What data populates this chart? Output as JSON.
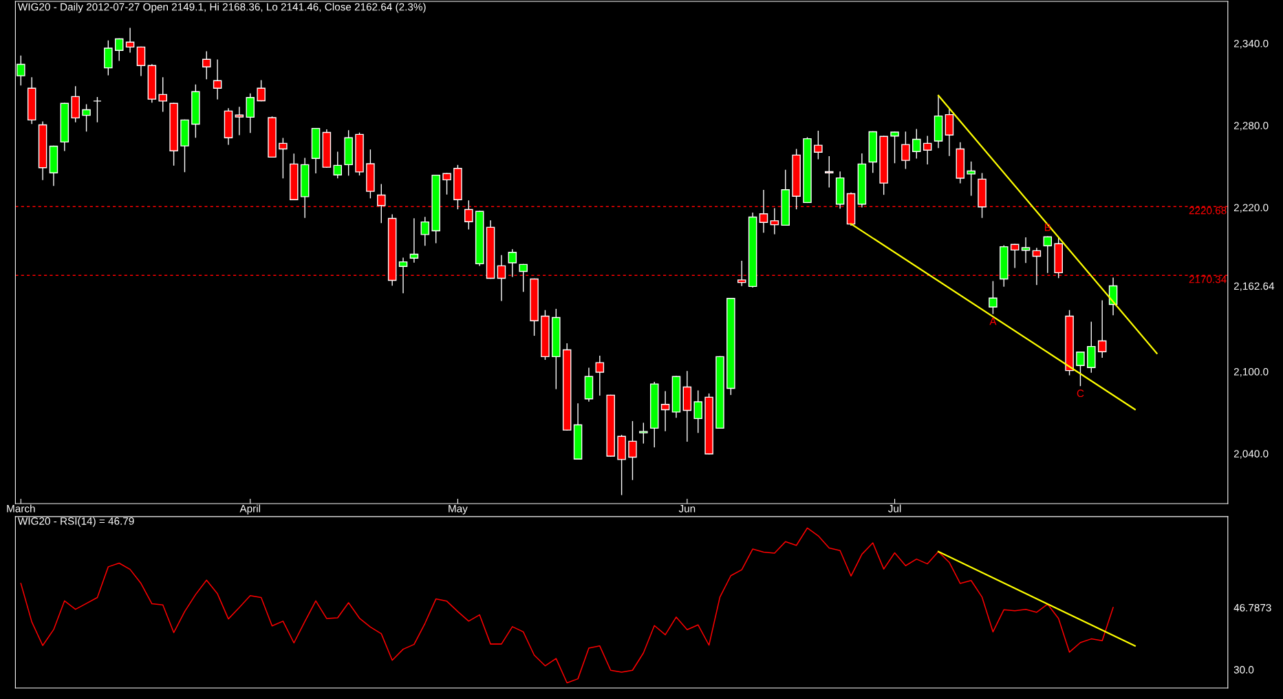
{
  "chart_data": [
    {
      "type": "candlestick",
      "title": "WIG20 - Daily 2012-07-27 Open 2149.1, Hi 2168.36, Lo 2141.46, Close 2162.64 (2.3%)",
      "categories": [
        "March",
        null,
        null,
        null,
        null,
        null,
        null,
        null,
        null,
        null,
        null,
        null,
        null,
        null,
        null,
        null,
        null,
        null,
        null,
        null,
        null,
        "April",
        null,
        null,
        null,
        null,
        null,
        null,
        null,
        null,
        null,
        null,
        null,
        null,
        null,
        null,
        null,
        null,
        null,
        null,
        "May",
        null,
        null,
        null,
        null,
        null,
        null,
        null,
        null,
        null,
        null,
        null,
        null,
        null,
        null,
        null,
        null,
        null,
        null,
        null,
        null,
        "Jun",
        null,
        null,
        null,
        null,
        null,
        null,
        null,
        null,
        null,
        null,
        null,
        null,
        null,
        null,
        null,
        null,
        null,
        null,
        "Jul",
        null,
        null,
        null,
        null,
        null,
        null,
        null,
        null,
        null,
        null,
        null,
        null,
        null,
        null,
        null,
        null,
        null,
        null,
        null,
        null,
        null,
        null,
        null,
        null,
        null,
        null,
        null,
        null,
        null,
        null
      ],
      "ohlc": [
        [
          2316.3,
          2330.8,
          2309.6,
          2324.7
        ],
        [
          2307.2,
          2314.9,
          2281.4,
          2284.0
        ],
        [
          2280.4,
          2282.6,
          2240.4,
          2249.1
        ],
        [
          2245.3,
          2264.8,
          2236.1,
          2264.8
        ],
        [
          2267.9,
          2296.1,
          2261.6,
          2296.1
        ],
        [
          2301.1,
          2308.4,
          2282.6,
          2285.5
        ],
        [
          2287.4,
          2295.1,
          2275.8,
          2291.5
        ],
        [
          2297.8,
          2300.4,
          2282.6,
          2297.8
        ],
        [
          2322.1,
          2341.8,
          2317.0,
          2336.5
        ],
        [
          2334.9,
          2343.3,
          2327.6,
          2343.3
        ],
        [
          2340.9,
          2351.0,
          2333.6,
          2337.3
        ],
        [
          2337.3,
          2337.3,
          2316.5,
          2323.8
        ],
        [
          2323.8,
          2324.5,
          2297.0,
          2299.2
        ],
        [
          2302.6,
          2314.9,
          2290.3,
          2297.8
        ],
        [
          2296.1,
          2296.1,
          2251.0,
          2261.4
        ],
        [
          2265.0,
          2284.0,
          2246.2,
          2284.0
        ],
        [
          2280.9,
          2309.6,
          2271.3,
          2304.7
        ],
        [
          2328.3,
          2333.9,
          2314.1,
          2322.8
        ],
        [
          2312.7,
          2327.9,
          2299.4,
          2307.2
        ],
        [
          2290.5,
          2292.2,
          2266.2,
          2271.0
        ],
        [
          2287.6,
          2293.2,
          2273.2,
          2286.2
        ],
        [
          2286.0,
          2303.1,
          2274.9,
          2300.4
        ],
        [
          2307.2,
          2312.7,
          2298.0,
          2298.0
        ],
        [
          2285.7,
          2286.2,
          2256.8,
          2256.8
        ],
        [
          2266.9,
          2270.5,
          2241.6,
          2262.8
        ],
        [
          2251.8,
          2259.0,
          2225.7,
          2225.7
        ],
        [
          2227.9,
          2255.9,
          2212.7,
          2251.3
        ],
        [
          2255.9,
          2277.8,
          2245.3,
          2277.8
        ],
        [
          2274.9,
          2276.8,
          2249.4,
          2249.4
        ],
        [
          2243.8,
          2260.4,
          2241.6,
          2250.8
        ],
        [
          2251.3,
          2276.1,
          2243.6,
          2271.0
        ],
        [
          2273.4,
          2274.4,
          2243.8,
          2246.0
        ],
        [
          2252.0,
          2262.1,
          2227.0,
          2231.8
        ],
        [
          2229.1,
          2236.8,
          2208.9,
          2221.4
        ],
        [
          2212.0,
          2214.7,
          2163.1,
          2166.7
        ],
        [
          2176.9,
          2182.9,
          2157.6,
          2180.2
        ],
        [
          2182.9,
          2211.8,
          2180.0,
          2185.8
        ],
        [
          2200.2,
          2212.7,
          2192.3,
          2209.4
        ],
        [
          2202.9,
          2243.6,
          2194.2,
          2243.6
        ],
        [
          2244.8,
          2244.8,
          2229.8,
          2240.2
        ],
        [
          2248.6,
          2250.8,
          2219.0,
          2225.7
        ],
        [
          2218.5,
          2224.8,
          2204.3,
          2209.6
        ],
        [
          2178.8,
          2217.1,
          2177.6,
          2217.1
        ],
        [
          2205.5,
          2210.3,
          2168.2,
          2168.2
        ],
        [
          2177.3,
          2184.8,
          2152.0,
          2168.2
        ],
        [
          2179.5,
          2189.1,
          2169.6,
          2187.2
        ],
        [
          2173.2,
          2178.3,
          2158.6,
          2178.3
        ],
        [
          2167.7,
          2167.7,
          2126.5,
          2137.1
        ],
        [
          2140.5,
          2144.6,
          2108.9,
          2110.9
        ],
        [
          2110.9,
          2145.5,
          2087.5,
          2139.5
        ],
        [
          2115.9,
          2120.3,
          2057.2,
          2057.2
        ],
        [
          2036.0,
          2076.4,
          2036.0,
          2061.0
        ],
        [
          2080.0,
          2102.4,
          2078.4,
          2096.4
        ],
        [
          2106.5,
          2111.3,
          2082.7,
          2099.5
        ],
        [
          2082.7,
          2082.7,
          2038.1,
          2038.1
        ],
        [
          2052.6,
          2053.3,
          2010.0,
          2035.7
        ],
        [
          2049.0,
          2063.4,
          2021.0,
          2037.4
        ],
        [
          2055.2,
          2062.2,
          2047.7,
          2056.2
        ],
        [
          2058.6,
          2092.1,
          2044.9,
          2090.9
        ],
        [
          2076.0,
          2085.3,
          2056.7,
          2072.1
        ],
        [
          2070.4,
          2096.4,
          2066.5,
          2096.4
        ],
        [
          2088.7,
          2100.0,
          2049.0,
          2071.6
        ],
        [
          2065.6,
          2085.8,
          2055.5,
          2077.9
        ],
        [
          2081.2,
          2083.6,
          2039.8,
          2039.8
        ],
        [
          2058.6,
          2110.9,
          2058.6,
          2110.9
        ],
        [
          2087.7,
          2153.5,
          2083.2,
          2153.5
        ],
        [
          2167.0,
          2180.7,
          2162.9,
          2165.1
        ],
        [
          2162.2,
          2215.9,
          2161.7,
          2213.0
        ],
        [
          2215.4,
          2232.5,
          2201.9,
          2209.1
        ],
        [
          2210.3,
          2219.2,
          2200.7,
          2207.4
        ],
        [
          2207.0,
          2247.2,
          2207.0,
          2233.0
        ],
        [
          2258.3,
          2262.4,
          2219.0,
          2228.2
        ],
        [
          2223.6,
          2271.0,
          2223.6,
          2270.3
        ],
        [
          2265.5,
          2275.8,
          2255.6,
          2260.4
        ],
        [
          2246.2,
          2257.1,
          2234.9,
          2245.3
        ],
        [
          2222.4,
          2246.0,
          2219.5,
          2241.6
        ],
        [
          2230.1,
          2230.6,
          2207.0,
          2207.9
        ],
        [
          2222.4,
          2259.2,
          2220.4,
          2251.8
        ],
        [
          2253.2,
          2275.4,
          2245.7,
          2275.4
        ],
        [
          2272.0,
          2272.0,
          2229.6,
          2237.8
        ],
        [
          2272.2,
          2275.1,
          2252.7,
          2275.1
        ],
        [
          2266.0,
          2275.1,
          2248.6,
          2254.4
        ],
        [
          2260.9,
          2277.0,
          2256.1,
          2269.8
        ],
        [
          2266.9,
          2272.0,
          2251.8,
          2261.9
        ],
        [
          2268.6,
          2301.9,
          2263.8,
          2286.9
        ],
        [
          2287.9,
          2292.2,
          2258.0,
          2273.0
        ],
        [
          2262.8,
          2267.4,
          2238.0,
          2241.4
        ],
        [
          2244.5,
          2253.2,
          2228.9,
          2246.7
        ],
        [
          2240.7,
          2244.8,
          2212.7,
          2220.4
        ],
        [
          2147.2,
          2165.8,
          2142.4,
          2153.7
        ],
        [
          2167.7,
          2192.0,
          2162.4,
          2191.3
        ],
        [
          2193.0,
          2193.0,
          2176.1,
          2188.9
        ],
        [
          2188.7,
          2197.8,
          2179.7,
          2190.6
        ],
        [
          2188.4,
          2190.1,
          2163.6,
          2184.3
        ],
        [
          2192.0,
          2198.5,
          2172.5,
          2198.5
        ],
        [
          2193.5,
          2197.8,
          2168.7,
          2172.3
        ],
        [
          2140.5,
          2144.6,
          2097.6,
          2100.7
        ],
        [
          2104.4,
          2114.2,
          2089.7,
          2114.2
        ],
        [
          2102.9,
          2136.1,
          2099.5,
          2118.3
        ],
        [
          2122.4,
          2151.8,
          2110.4,
          2114.5
        ],
        [
          2149.1,
          2168.36,
          2141.46,
          2162.64
        ],
        null,
        null,
        null,
        null,
        null,
        null,
        null,
        null,
        null,
        null
      ],
      "colors": [
        "#00ff00",
        "#ff0000",
        "#ff0000",
        "#00ff00",
        "#00ff00",
        "#ff0000",
        "#00ff00",
        "#ffffff",
        "#00ff00",
        "#00ff00",
        "#ff0000",
        "#ff0000",
        "#ff0000",
        "#ff0000",
        "#ff0000",
        "#00ff00",
        "#00ff00",
        "#ff0000",
        "#ff0000",
        "#ff0000",
        "#ff0000",
        "#00ff00",
        "#ff0000",
        "#ff0000",
        "#ff0000",
        "#ff0000",
        "#00ff00",
        "#00ff00",
        "#ff0000",
        "#00ff00",
        "#00ff00",
        "#ff0000",
        "#ff0000",
        "#ff0000",
        "#ff0000",
        "#00ff00",
        "#00ff00",
        "#00ff00",
        "#00ff00",
        "#ff0000",
        "#ff0000",
        "#ff0000",
        "#00ff00",
        "#ff0000",
        "#ff0000",
        "#00ff00",
        "#00ff00",
        "#ff0000",
        "#ff0000",
        "#00ff00",
        "#ff0000",
        "#00ff00",
        "#00ff00",
        "#ff0000",
        "#ff0000",
        "#ff0000",
        "#ff0000",
        "#00ff00",
        "#00ff00",
        "#ff0000",
        "#00ff00",
        "#ff0000",
        "#00ff00",
        "#ff0000",
        "#00ff00",
        "#00ff00",
        "#ff0000",
        "#00ff00",
        "#ff0000",
        "#ff0000",
        "#00ff00",
        "#ff0000",
        "#00ff00",
        "#ff0000",
        "#ff0000",
        "#00ff00",
        "#ff0000",
        "#00ff00",
        "#00ff00",
        "#ff0000",
        "#00ff00",
        "#ff0000",
        "#00ff00",
        "#ff0000",
        "#00ff00",
        "#ff0000",
        "#ff0000",
        "#00ff00",
        "#ff0000",
        "#00ff00",
        "#00ff00",
        "#ff0000",
        "#00ff00",
        "#ff0000",
        "#00ff00",
        "#ff0000",
        "#ff0000",
        "#00ff00",
        "#00ff00",
        "#ff0000",
        "#00ff00",
        null,
        null,
        null,
        null,
        null,
        null,
        null,
        null,
        null,
        null
      ],
      "series": [
        {
          "type": "line",
          "values": [
            null,
            null,
            null,
            null,
            null,
            null,
            null,
            null,
            null,
            null,
            null,
            null,
            null,
            null,
            null,
            null,
            null,
            null,
            null,
            null,
            null,
            null,
            null,
            null,
            null,
            null,
            null,
            null,
            null,
            null,
            null,
            null,
            null,
            null,
            null,
            null,
            null,
            null,
            null,
            null,
            null,
            null,
            null,
            null,
            null,
            null,
            null,
            null,
            null,
            null,
            null,
            null,
            null,
            null,
            null,
            null,
            null,
            null,
            null,
            null,
            null,
            null,
            null,
            null,
            null,
            null,
            null,
            null,
            null,
            null,
            null,
            null,
            null,
            null,
            null,
            null,
            null,
            null,
            null,
            null,
            null,
            null,
            null,
            null,
            2301.9,
            null,
            null,
            null,
            null,
            null,
            null,
            null,
            null,
            null,
            null,
            null,
            null,
            null,
            null,
            null,
            null,
            null,
            null,
            null,
            2113.3,
            null,
            null,
            null,
            null,
            null,
            null
          ],
          "color": "#ffff00"
        },
        {
          "type": "line",
          "values": [
            null,
            null,
            null,
            null,
            null,
            null,
            null,
            null,
            null,
            null,
            null,
            null,
            null,
            null,
            null,
            null,
            null,
            null,
            null,
            null,
            null,
            null,
            null,
            null,
            null,
            null,
            null,
            null,
            null,
            null,
            null,
            null,
            null,
            null,
            null,
            null,
            null,
            null,
            null,
            null,
            null,
            null,
            null,
            null,
            null,
            null,
            null,
            null,
            null,
            null,
            null,
            null,
            null,
            null,
            null,
            null,
            null,
            null,
            null,
            null,
            null,
            null,
            null,
            null,
            null,
            null,
            null,
            null,
            null,
            null,
            null,
            null,
            null,
            null,
            null,
            null,
            2208.0,
            null,
            null,
            null,
            null,
            null,
            null,
            null,
            null,
            null,
            null,
            null,
            null,
            null,
            null,
            null,
            null,
            null,
            null,
            null,
            null,
            null,
            null,
            null,
            null,
            null,
            2072.3,
            null,
            null,
            null,
            null,
            null,
            null,
            null,
            null
          ],
          "color": "#ffff00"
        }
      ],
      "ref_lines": [
        {
          "axis": "y",
          "value": 2220.68,
          "label": "2220.68",
          "color": "#ff0000",
          "line_style": "dashed"
        },
        {
          "axis": "y",
          "value": 2170.34,
          "label": "2170.34",
          "color": "#ff0000",
          "line_style": "dashed"
        }
      ],
      "annotations": [
        {
          "text": "A",
          "y": 2142.4
        },
        {
          "text": "B",
          "y": 2198.5
        },
        {
          "text": "C",
          "y": 2089.7
        }
      ],
      "ylim": [
        2003.4,
        2370.7
      ],
      "yticks": [
        {
          "value": 2040,
          "label": "2,040.0"
        },
        {
          "value": 2100,
          "label": "2,100.0"
        },
        {
          "value": 2162.64,
          "label": "2,162.64"
        },
        {
          "value": 2220,
          "label": "2,220.0"
        },
        {
          "value": 2280,
          "label": "2,280.0"
        },
        {
          "value": 2340,
          "label": "2,340.0"
        }
      ]
    },
    {
      "type": "line",
      "title": "WIG20 - RSI(14) = 46.79",
      "categories": [
        null,
        null,
        null,
        null,
        null,
        null,
        null,
        null,
        null,
        null,
        null,
        null,
        null,
        null,
        null,
        null,
        null,
        null,
        null,
        null,
        null,
        null,
        null,
        null,
        null,
        null,
        null,
        null,
        null,
        null,
        null,
        null,
        null,
        null,
        null,
        null,
        null,
        null,
        null,
        null,
        null,
        null,
        null,
        null,
        null,
        null,
        null,
        null,
        null,
        null,
        null,
        null,
        null,
        null,
        null,
        null,
        null,
        null,
        null,
        null,
        null,
        null,
        null,
        null,
        null,
        null,
        null,
        null,
        null,
        null,
        null,
        null,
        null,
        null,
        null,
        null,
        null,
        null,
        null,
        null,
        null,
        null,
        null,
        null,
        null,
        null,
        null,
        null,
        null,
        null,
        null,
        null,
        null,
        null,
        null,
        null,
        null,
        null,
        null,
        null,
        null,
        null,
        null,
        null,
        null,
        null,
        null,
        null,
        null,
        null,
        null
      ],
      "series": [
        {
          "color": "#ff0000",
          "values": [
            53.3,
            42.9,
            36.5,
            40.8,
            48.6,
            46.3,
            47.9,
            49.5,
            57.8,
            58.8,
            57.1,
            53.3,
            47.8,
            47.5,
            40.0,
            45.7,
            50.3,
            54.2,
            50.5,
            43.7,
            46.8,
            50.0,
            49.5,
            41.8,
            43.1,
            37.2,
            43.0,
            48.6,
            43.8,
            44.0,
            48.1,
            43.9,
            41.5,
            39.7,
            32.5,
            35.5,
            36.8,
            42.5,
            49.1,
            48.5,
            45.7,
            43.1,
            44.8,
            36.9,
            36.9,
            41.6,
            40.2,
            33.9,
            31.0,
            33.0,
            26.4,
            27.5,
            35.8,
            36.4,
            29.8,
            29.3,
            29.8,
            34.5,
            41.9,
            39.4,
            44.2,
            40.8,
            42.1,
            36.6,
            49.6,
            55.4,
            57.0,
            62.6,
            61.8,
            61.5,
            64.6,
            63.6,
            68.3,
            66.2,
            62.9,
            62.2,
            55.3,
            61.2,
            64.3,
            57.2,
            61.6,
            58.1,
            59.9,
            58.6,
            61.9,
            59.0,
            53.3,
            54.1,
            49.6,
            40.2,
            46.2,
            45.9,
            46.3,
            45.5,
            47.7,
            43.8,
            34.7,
            37.3,
            38.3,
            37.8,
            46.7873,
            null,
            null,
            null,
            null,
            null,
            null,
            null,
            null,
            null,
            null
          ]
        },
        {
          "type": "line",
          "values": [
            null,
            null,
            null,
            null,
            null,
            null,
            null,
            null,
            null,
            null,
            null,
            null,
            null,
            null,
            null,
            null,
            null,
            null,
            null,
            null,
            null,
            null,
            null,
            null,
            null,
            null,
            null,
            null,
            null,
            null,
            null,
            null,
            null,
            null,
            null,
            null,
            null,
            null,
            null,
            null,
            null,
            null,
            null,
            null,
            null,
            null,
            null,
            null,
            null,
            null,
            null,
            null,
            null,
            null,
            null,
            null,
            null,
            null,
            null,
            null,
            null,
            null,
            null,
            null,
            null,
            null,
            null,
            null,
            null,
            null,
            null,
            null,
            null,
            null,
            null,
            null,
            null,
            null,
            null,
            null,
            null,
            null,
            null,
            null,
            61.9,
            null,
            null,
            null,
            null,
            null,
            null,
            null,
            null,
            null,
            null,
            null,
            null,
            null,
            null,
            null,
            null,
            null,
            36.4,
            null,
            null,
            null,
            null,
            null,
            null,
            null,
            null
          ],
          "color": "#ffff00"
        }
      ],
      "ylim": [
        25,
        71.4
      ],
      "yticks": [
        {
          "value": 30,
          "label": "30.0"
        },
        {
          "value": 46.7873,
          "label": "46.7873"
        }
      ],
      "tick_labels": "y"
    }
  ]
}
